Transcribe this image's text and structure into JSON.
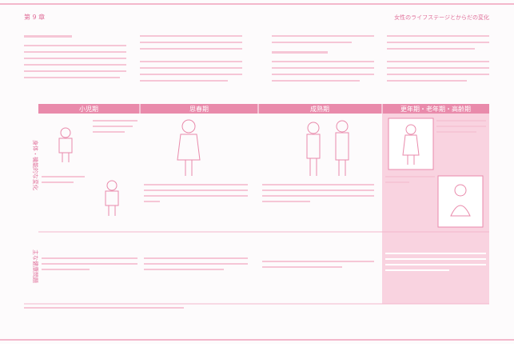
{
  "header": {
    "chapter": "第 9 章",
    "title": "女性のライフステージとからだの変化"
  },
  "table": {
    "columns": [
      "小児期",
      "思春期",
      "成熟期",
      "更年期・老年期・高齢期"
    ],
    "rows": [
      "身体・機能的な変化",
      "主な健康問題"
    ]
  }
}
